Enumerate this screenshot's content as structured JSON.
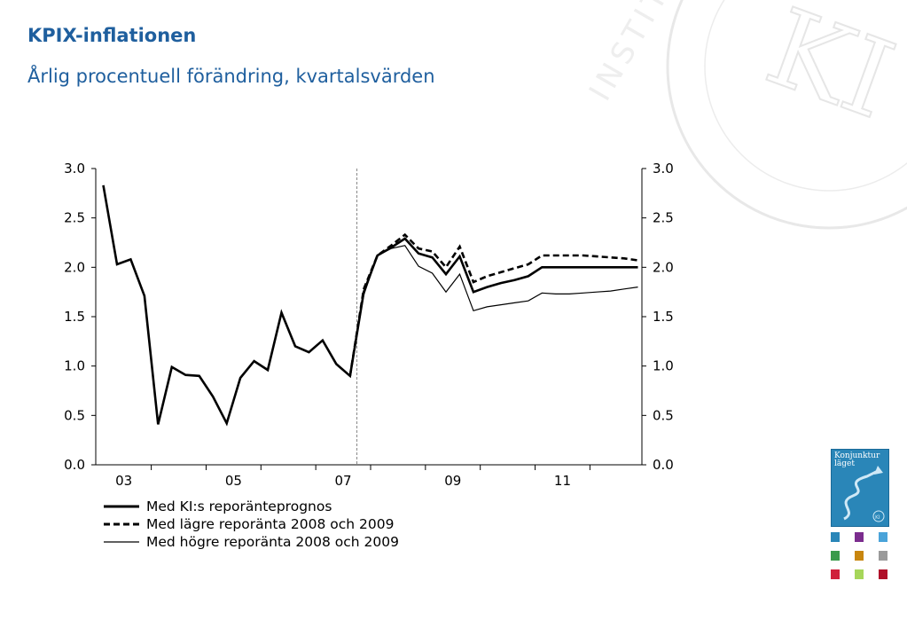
{
  "header": {
    "title": "KPIX-inflationen",
    "subtitle": "Årlig procentuell förändring, kvartalsvärden"
  },
  "chart_data": {
    "type": "line",
    "title": "KPIX-inflationen",
    "subtitle": "Årlig procentuell förändring, kvartalsvärden",
    "xlabel": "",
    "ylabel": "",
    "ylim": [
      0,
      3
    ],
    "yticks": [
      "0.0",
      "0.5",
      "1.0",
      "1.5",
      "2.0",
      "2.5",
      "3.0"
    ],
    "x_tick_labels": [
      "03",
      "05",
      "07",
      "09",
      "11"
    ],
    "x_range_quarters": [
      "2003Q1",
      "2012Q4"
    ],
    "forecast_start": "2007Q4",
    "grid": false,
    "secondary_y_axis": true,
    "series": [
      {
        "name": "Med KI:s reporänteprognos",
        "style": "solid-thick",
        "x": [
          "2003Q1",
          "2003Q2",
          "2003Q3",
          "2003Q4",
          "2004Q1",
          "2004Q2",
          "2004Q3",
          "2004Q4",
          "2005Q1",
          "2005Q2",
          "2005Q3",
          "2005Q4",
          "2006Q1",
          "2006Q2",
          "2006Q3",
          "2006Q4",
          "2007Q1",
          "2007Q2",
          "2007Q3",
          "2007Q4",
          "2008Q1",
          "2008Q2",
          "2008Q3",
          "2008Q4",
          "2009Q1",
          "2009Q2",
          "2009Q3",
          "2009Q4",
          "2010Q1",
          "2010Q2",
          "2010Q3",
          "2010Q4",
          "2011Q1",
          "2011Q2",
          "2011Q3",
          "2011Q4",
          "2012Q1",
          "2012Q2",
          "2012Q3",
          "2012Q4"
        ],
        "values": [
          2.83,
          2.03,
          2.08,
          1.71,
          0.41,
          0.99,
          0.91,
          0.9,
          0.69,
          0.42,
          0.88,
          1.05,
          0.96,
          1.54,
          1.2,
          1.14,
          1.26,
          1.02,
          0.9,
          1.75,
          2.12,
          2.2,
          2.29,
          2.14,
          2.1,
          1.93,
          2.11,
          1.75,
          1.8,
          1.84,
          1.87,
          1.91,
          2.0,
          2.0,
          2.0,
          2.0,
          2.0,
          2.0,
          2.0,
          2.0
        ]
      },
      {
        "name": "Med lägre reporänta 2008 och 2009",
        "style": "dashed-thick",
        "x": [
          "2007Q3",
          "2007Q4",
          "2008Q1",
          "2008Q2",
          "2008Q3",
          "2008Q4",
          "2009Q1",
          "2009Q2",
          "2009Q3",
          "2009Q4",
          "2010Q1",
          "2010Q2",
          "2010Q3",
          "2010Q4",
          "2011Q1",
          "2011Q2",
          "2011Q3",
          "2011Q4",
          "2012Q1",
          "2012Q2",
          "2012Q3",
          "2012Q4"
        ],
        "values": [
          0.9,
          1.78,
          2.12,
          2.22,
          2.33,
          2.19,
          2.16,
          2.0,
          2.21,
          1.85,
          1.91,
          1.95,
          1.99,
          2.03,
          2.12,
          2.12,
          2.12,
          2.12,
          2.11,
          2.1,
          2.09,
          2.07
        ]
      },
      {
        "name": "Med högre reporänta 2008 och 2009",
        "style": "solid-thin",
        "x": [
          "2007Q3",
          "2007Q4",
          "2008Q1",
          "2008Q2",
          "2008Q3",
          "2008Q4",
          "2009Q1",
          "2009Q2",
          "2009Q3",
          "2009Q4",
          "2010Q1",
          "2010Q2",
          "2010Q3",
          "2010Q4",
          "2011Q1",
          "2011Q2",
          "2011Q3",
          "2011Q4",
          "2012Q1",
          "2012Q2",
          "2012Q3",
          "2012Q4"
        ],
        "values": [
          0.9,
          1.72,
          2.12,
          2.19,
          2.22,
          2.01,
          1.94,
          1.75,
          1.93,
          1.56,
          1.6,
          1.62,
          1.64,
          1.66,
          1.74,
          1.73,
          1.73,
          1.74,
          1.75,
          1.76,
          1.78,
          1.8
        ]
      }
    ]
  },
  "legend": {
    "items": [
      {
        "label": "Med KI:s reporänteprognos",
        "style": "solid-thick"
      },
      {
        "label": "Med lägre reporänta 2008 och 2009",
        "style": "dashed-thick"
      },
      {
        "label": "Med högre reporänta 2008 och 2009",
        "style": "solid-thin"
      }
    ]
  },
  "logo": {
    "text_line1": "Konjunktur",
    "text_line2": "läget",
    "badge": "KI",
    "color": "#2a86b8"
  },
  "watermark": {
    "monogram": "KI",
    "text": "INSTITUTET"
  },
  "colors": {
    "title": "#1f5f9e",
    "lines": "#000000",
    "axis": "#000000",
    "forecast_divider": "#888888"
  },
  "swatch_colors": [
    "#2a86b8",
    "#7b2d8e",
    "#4aa3d9",
    "#3a9a4a",
    "#c8860e",
    "#9a9a9a",
    "#d0213a",
    "#a6d65a",
    "#b0102a"
  ]
}
